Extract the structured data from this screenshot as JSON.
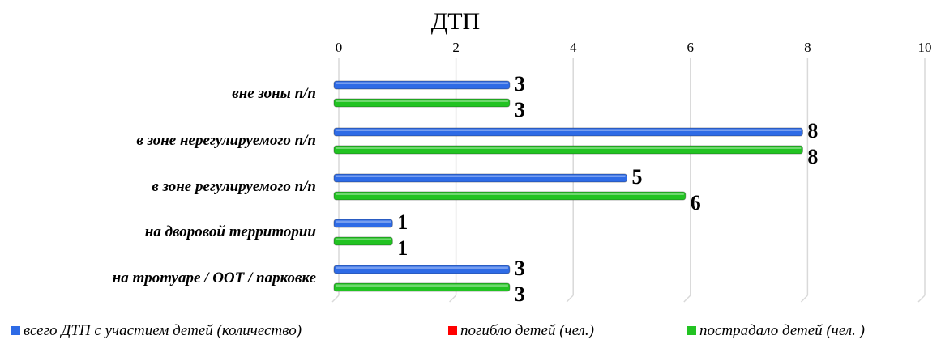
{
  "chart_data": {
    "type": "bar",
    "orientation": "horizontal",
    "title": "ДТП",
    "xlim": [
      0,
      10
    ],
    "x_ticks": [
      "0",
      "2",
      "4",
      "6",
      "8",
      "10"
    ],
    "categories": [
      "вне зоны п/п",
      "в зоне нерегулируемого п/п",
      "в зоне регулируемого п/п",
      "на дворовой территории",
      "на тротуаре / ООТ / парковке"
    ],
    "series": [
      {
        "name": "всего ДТП с участием детей (количество)",
        "color": "#2e6be6",
        "values": [
          3,
          8,
          5,
          1,
          3
        ]
      },
      {
        "name": "погибло детей (чел.)",
        "color": "#ff0000",
        "values": [
          null,
          null,
          null,
          null,
          null
        ]
      },
      {
        "name": "пострадало детей (чел. )",
        "color": "#22c322",
        "values": [
          3,
          8,
          6,
          1,
          3
        ]
      }
    ],
    "grid": true,
    "legend_position": "bottom",
    "data_labels": true
  }
}
